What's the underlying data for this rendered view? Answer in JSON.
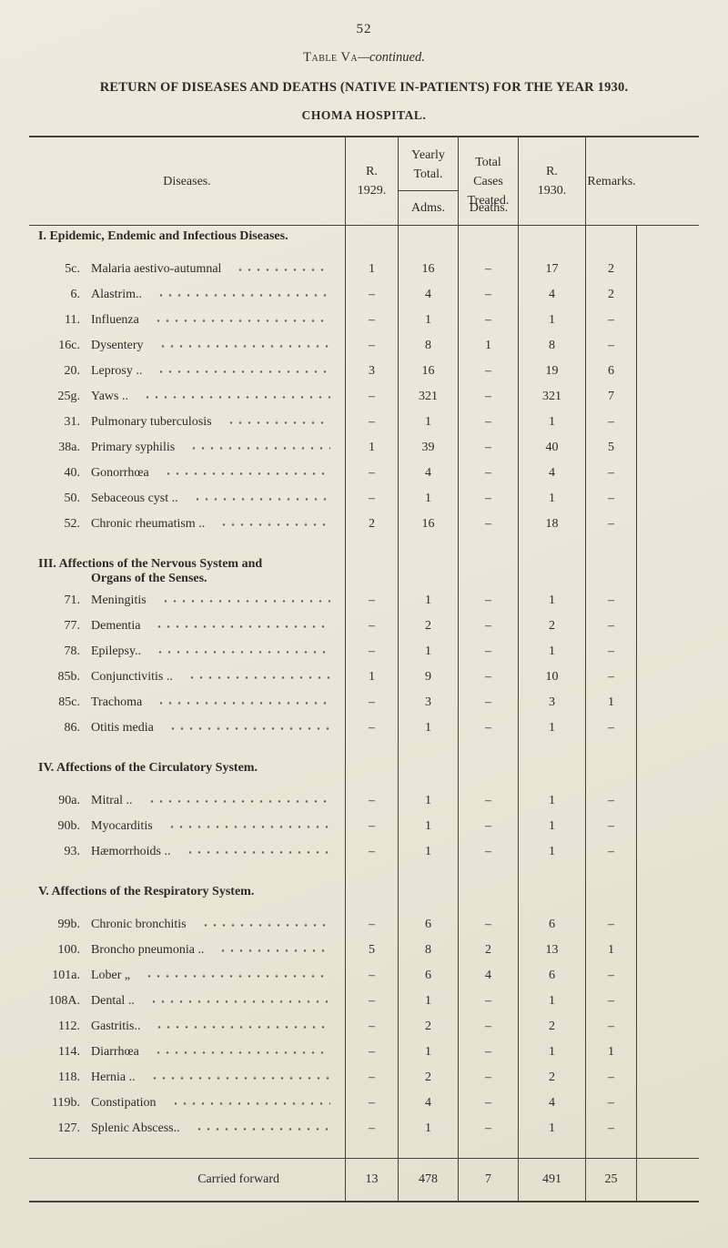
{
  "page": {
    "number": "52",
    "caption_name": "Table Va",
    "caption_suffix": "—continued.",
    "title": "RETURN OF DISEASES AND DEATHS (NATIVE IN-PATIENTS) FOR THE YEAR 1930.",
    "subtitle": "CHOMA HOSPITAL."
  },
  "table": {
    "headers": {
      "diseases": "Diseases.",
      "r1929": "R.\n1929.",
      "yearly_total": "Yearly Total.",
      "adms": "Adms.",
      "deaths": "Deaths.",
      "total_cases": "Total\nCases\nTreated.",
      "r1930": "R.\n1930.",
      "remarks": "Remarks."
    },
    "sections": [
      {
        "title": "I. Epidemic, Endemic and Infectious Diseases.",
        "subtitle": "",
        "rows": [
          {
            "num": "5c.",
            "label": "Malaria aestivo-autumnal",
            "r1929": "1",
            "adms": "16",
            "deaths": "–",
            "total": "17",
            "r1930": "2",
            "remarks": ""
          },
          {
            "num": "6.",
            "label": "Alastrim..",
            "r1929": "–",
            "adms": "4",
            "deaths": "–",
            "total": "4",
            "r1930": "2",
            "remarks": ""
          },
          {
            "num": "11.",
            "label": "Influenza",
            "r1929": "–",
            "adms": "1",
            "deaths": "–",
            "total": "1",
            "r1930": "–",
            "remarks": ""
          },
          {
            "num": "16c.",
            "label": "Dysentery",
            "r1929": "–",
            "adms": "8",
            "deaths": "1",
            "total": "8",
            "r1930": "–",
            "remarks": ""
          },
          {
            "num": "20.",
            "label": "Leprosy ..",
            "r1929": "3",
            "adms": "16",
            "deaths": "–",
            "total": "19",
            "r1930": "6",
            "remarks": ""
          },
          {
            "num": "25g.",
            "label": "Yaws ..",
            "r1929": "–",
            "adms": "321",
            "deaths": "–",
            "total": "321",
            "r1930": "7",
            "remarks": ""
          },
          {
            "num": "31.",
            "label": "Pulmonary tuberculosis",
            "r1929": "–",
            "adms": "1",
            "deaths": "–",
            "total": "1",
            "r1930": "–",
            "remarks": ""
          },
          {
            "num": "38a.",
            "label": "Primary syphilis",
            "r1929": "1",
            "adms": "39",
            "deaths": "–",
            "total": "40",
            "r1930": "5",
            "remarks": ""
          },
          {
            "num": "40.",
            "label": "Gonorrhœa",
            "r1929": "–",
            "adms": "4",
            "deaths": "–",
            "total": "4",
            "r1930": "–",
            "remarks": ""
          },
          {
            "num": "50.",
            "label": "Sebaceous cyst ..",
            "r1929": "–",
            "adms": "1",
            "deaths": "–",
            "total": "1",
            "r1930": "–",
            "remarks": ""
          },
          {
            "num": "52.",
            "label": "Chronic rheumatism ..",
            "r1929": "2",
            "adms": "16",
            "deaths": "–",
            "total": "18",
            "r1930": "–",
            "remarks": ""
          }
        ]
      },
      {
        "title": "III. Affections of the Nervous System and",
        "subtitle": "Organs of the Senses.",
        "rows": [
          {
            "num": "71.",
            "label": "Meningitis",
            "r1929": "–",
            "adms": "1",
            "deaths": "–",
            "total": "1",
            "r1930": "–",
            "remarks": ""
          },
          {
            "num": "77.",
            "label": "Dementia",
            "r1929": "–",
            "adms": "2",
            "deaths": "–",
            "total": "2",
            "r1930": "–",
            "remarks": ""
          },
          {
            "num": "78.",
            "label": "Epilepsy..",
            "r1929": "–",
            "adms": "1",
            "deaths": "–",
            "total": "1",
            "r1930": "–",
            "remarks": ""
          },
          {
            "num": "85b.",
            "label": "Conjunctivitis ..",
            "r1929": "1",
            "adms": "9",
            "deaths": "–",
            "total": "10",
            "r1930": "–",
            "remarks": ""
          },
          {
            "num": "85c.",
            "label": "Trachoma",
            "r1929": "–",
            "adms": "3",
            "deaths": "–",
            "total": "3",
            "r1930": "1",
            "remarks": ""
          },
          {
            "num": "86.",
            "label": "Otitis media",
            "r1929": "–",
            "adms": "1",
            "deaths": "–",
            "total": "1",
            "r1930": "–",
            "remarks": ""
          }
        ]
      },
      {
        "title": "IV. Affections of the Circulatory System.",
        "subtitle": "",
        "rows": [
          {
            "num": "90a.",
            "label": "Mitral ..",
            "r1929": "–",
            "adms": "1",
            "deaths": "–",
            "total": "1",
            "r1930": "–",
            "remarks": ""
          },
          {
            "num": "90b.",
            "label": "Myocarditis",
            "r1929": "–",
            "adms": "1",
            "deaths": "–",
            "total": "1",
            "r1930": "–",
            "remarks": ""
          },
          {
            "num": "93.",
            "label": "Hæmorrhoids ..",
            "r1929": "–",
            "adms": "1",
            "deaths": "–",
            "total": "1",
            "r1930": "–",
            "remarks": ""
          }
        ]
      },
      {
        "title": "V. Affections of the Respiratory System.",
        "subtitle": "",
        "rows": [
          {
            "num": "99b.",
            "label": "Chronic bronchitis",
            "r1929": "–",
            "adms": "6",
            "deaths": "–",
            "total": "6",
            "r1930": "–",
            "remarks": ""
          },
          {
            "num": "100.",
            "label": "Broncho pneumonia ..",
            "r1929": "5",
            "adms": "8",
            "deaths": "2",
            "total": "13",
            "r1930": "1",
            "remarks": ""
          },
          {
            "num": "101a.",
            "label": "Lober „",
            "r1929": "–",
            "adms": "6",
            "deaths": "4",
            "total": "6",
            "r1930": "–",
            "remarks": ""
          },
          {
            "num": "108A.",
            "label": "Dental ..",
            "r1929": "–",
            "adms": "1",
            "deaths": "–",
            "total": "1",
            "r1930": "–",
            "remarks": ""
          },
          {
            "num": "112.",
            "label": "Gastritis..",
            "r1929": "–",
            "adms": "2",
            "deaths": "–",
            "total": "2",
            "r1930": "–",
            "remarks": ""
          },
          {
            "num": "114.",
            "label": "Diarrhœa",
            "r1929": "–",
            "adms": "1",
            "deaths": "–",
            "total": "1",
            "r1930": "1",
            "remarks": ""
          },
          {
            "num": "118.",
            "label": "Hernia ..",
            "r1929": "–",
            "adms": "2",
            "deaths": "–",
            "total": "2",
            "r1930": "–",
            "remarks": ""
          },
          {
            "num": "119b.",
            "label": "Constipation",
            "r1929": "–",
            "adms": "4",
            "deaths": "–",
            "total": "4",
            "r1930": "–",
            "remarks": ""
          },
          {
            "num": "127.",
            "label": "Splenic Abscess..",
            "r1929": "–",
            "adms": "1",
            "deaths": "–",
            "total": "1",
            "r1930": "–",
            "remarks": ""
          }
        ]
      }
    ],
    "footer": {
      "label": "Carried forward",
      "r1929": "13",
      "adms": "478",
      "deaths": "7",
      "total": "491",
      "r1930": "25",
      "remarks": ""
    }
  }
}
